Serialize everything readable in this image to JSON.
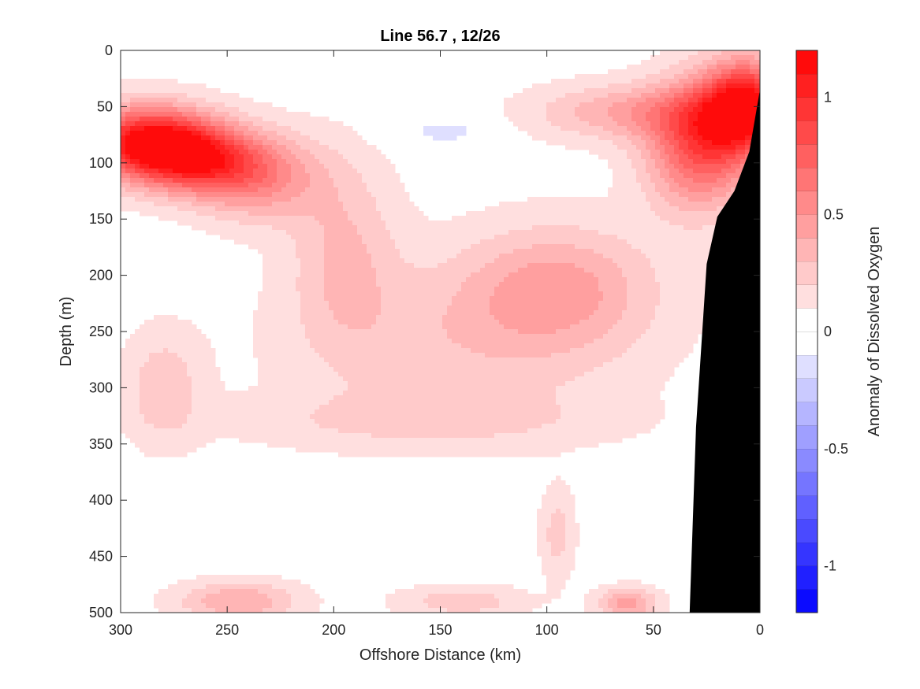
{
  "chart_data": {
    "type": "heatmap",
    "title": "Line 56.7 , 12/26",
    "xlabel": "Offshore Distance (km)",
    "ylabel": "Depth (m)",
    "colorbar_label": "Anomaly of Dissolved Oxygen",
    "x_reversed": true,
    "xlim": [
      300,
      0
    ],
    "ylim": [
      0,
      500
    ],
    "y_reversed": true,
    "x_ticks": [
      "300",
      "250",
      "200",
      "150",
      "100",
      "50",
      "0"
    ],
    "y_ticks": [
      "0",
      "50",
      "100",
      "150",
      "200",
      "250",
      "300",
      "350",
      "400",
      "450",
      "500"
    ],
    "x_tick_values": [
      300,
      250,
      200,
      150,
      100,
      50,
      0
    ],
    "y_tick_values": [
      0,
      50,
      100,
      150,
      200,
      250,
      300,
      350,
      400,
      450,
      500
    ],
    "colorbar_ticks": [
      "1",
      "0.5",
      "0",
      "-0.5",
      "-1"
    ],
    "colorbar_tick_values": [
      1,
      0.5,
      0,
      -0.5,
      -1
    ],
    "clim": [
      -1.2,
      1.2
    ],
    "levels": 24,
    "colormap": {
      "negative": "#0000ff",
      "zero": "#ffffff",
      "positive": "#ff0000"
    },
    "bathymetry_color": "#000000",
    "bathymetry": [
      {
        "x": 33,
        "depth": 500
      },
      {
        "x": 30,
        "depth": 335
      },
      {
        "x": 25,
        "depth": 190
      },
      {
        "x": 20,
        "depth": 148
      },
      {
        "x": 12,
        "depth": 125
      },
      {
        "x": 5,
        "depth": 90
      },
      {
        "x": 0,
        "depth": 35
      }
    ],
    "anomaly_features": [
      {
        "x": 287,
        "depth": 82,
        "value": 1.1,
        "sx": 30,
        "sd": 32
      },
      {
        "x": 262,
        "depth": 98,
        "value": 0.65,
        "sx": 28,
        "sd": 30
      },
      {
        "x": 235,
        "depth": 112,
        "value": 0.45,
        "sx": 30,
        "sd": 38
      },
      {
        "x": 6,
        "depth": 50,
        "value": 1.05,
        "sx": 20,
        "sd": 40
      },
      {
        "x": 28,
        "depth": 85,
        "value": 0.75,
        "sx": 25,
        "sd": 55
      },
      {
        "x": 60,
        "depth": 55,
        "value": 0.35,
        "sx": 45,
        "sd": 25
      },
      {
        "x": 95,
        "depth": 210,
        "value": 0.35,
        "sx": 45,
        "sd": 55
      },
      {
        "x": 195,
        "depth": 180,
        "value": 0.25,
        "sx": 25,
        "sd": 80
      },
      {
        "x": 140,
        "depth": 260,
        "value": 0.2,
        "sx": 80,
        "sd": 70
      },
      {
        "x": 280,
        "depth": 300,
        "value": 0.22,
        "sx": 18,
        "sd": 50
      },
      {
        "x": 148,
        "depth": 72,
        "value": -0.2,
        "sx": 22,
        "sd": 14
      },
      {
        "x": 245,
        "depth": 490,
        "value": 0.35,
        "sx": 28,
        "sd": 18
      },
      {
        "x": 140,
        "depth": 490,
        "value": 0.22,
        "sx": 30,
        "sd": 14
      },
      {
        "x": 62,
        "depth": 492,
        "value": 0.4,
        "sx": 14,
        "sd": 14
      },
      {
        "x": 95,
        "depth": 430,
        "value": 0.2,
        "sx": 8,
        "sd": 40
      },
      {
        "x": 160,
        "depth": 330,
        "value": 0.15,
        "sx": 90,
        "sd": 25
      }
    ]
  }
}
